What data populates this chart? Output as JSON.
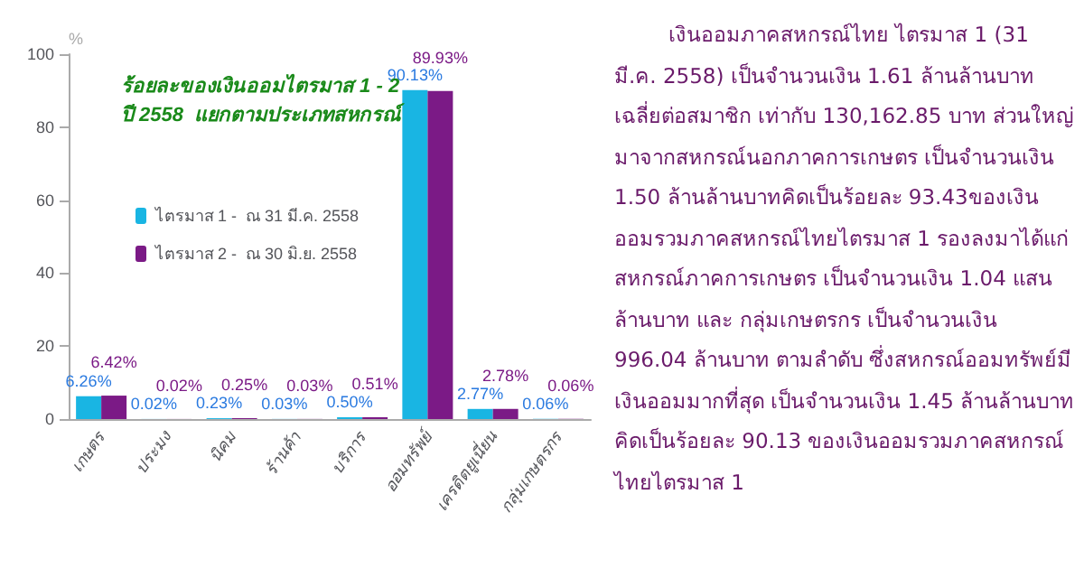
{
  "chart_data": {
    "type": "bar",
    "title": "ร้อยละของเงินออมไตรมาส 1 - 2\nปี 2558  แยกตามประเภทสหกรณ์",
    "ylabel": "%",
    "categories": [
      "เกษตร",
      "ประมง",
      "นิคม",
      "ร้านค้า",
      "บริการ",
      "ออมทรัพย์",
      "เครดิตยูเนี่ยน",
      "กลุ่มเกษตรกร"
    ],
    "series": [
      {
        "name": "ไตรมาส 1 -  ณ 31 มี.ค. 2558",
        "color": "#19b5e3",
        "values": [
          6.26,
          0.02,
          0.23,
          0.03,
          0.5,
          90.13,
          2.77,
          0.06
        ],
        "value_labels": [
          "6.26%",
          "0.02%",
          "0.23%",
          "0.03%",
          "0.50%",
          "90.13%",
          "2.77%",
          "0.06%"
        ]
      },
      {
        "name": "ไตรมาส 2 -  ณ 30 มิ.ย. 2558",
        "color": "#7b1a86",
        "values": [
          6.42,
          0.02,
          0.25,
          0.03,
          0.51,
          89.93,
          2.78,
          0.06
        ],
        "value_labels": [
          "6.42%",
          "0.02%",
          "0.25%",
          "0.03%",
          "0.51%",
          "89.93%",
          "2.78%",
          "0.06%"
        ]
      }
    ],
    "ylim": [
      0,
      100
    ],
    "yticks": [
      0,
      20,
      40,
      60,
      80,
      100
    ],
    "grid": false,
    "legend": "left",
    "annotations": [
      "เงินออมภาคสหกรณ์ไทย ไตรมาส 1 (31 มี.ค. 2558) เป็นจำนวนเงิน 1.61 ล้านล้านบาท เฉลี่ยต่อสมาชิก เท่ากับ 130,162.85 บาท ส่วนใหญ่มาจากสหกรณ์นอกภาคการเกษตร เป็นจำนวนเงิน 1.50 ล้านล้านบาทคิดเป็นร้อยละ 93.43ของเงินออมรวมภาคสหกรณ์ไทยไตรมาส 1 รองลงมาได้แก่  สหกรณ์ภาคการเกษตร เป็นจำนวนเงิน 1.04 แสนล้านบาท  และ กลุ่มเกษตรกร เป็นจำนวนเงิน 996.04 ล้านบาท ตามลำดับ ซึ่งสหกรณ์ออมทรัพย์มีเงินออมมากที่สุด เป็นจำนวนเงิน 1.45 ล้านล้านบาท คิดเป็นร้อยละ 90.13 ของเงินออมรวมภาคสหกรณ์ไทยไตรมาส 1"
    ]
  }
}
